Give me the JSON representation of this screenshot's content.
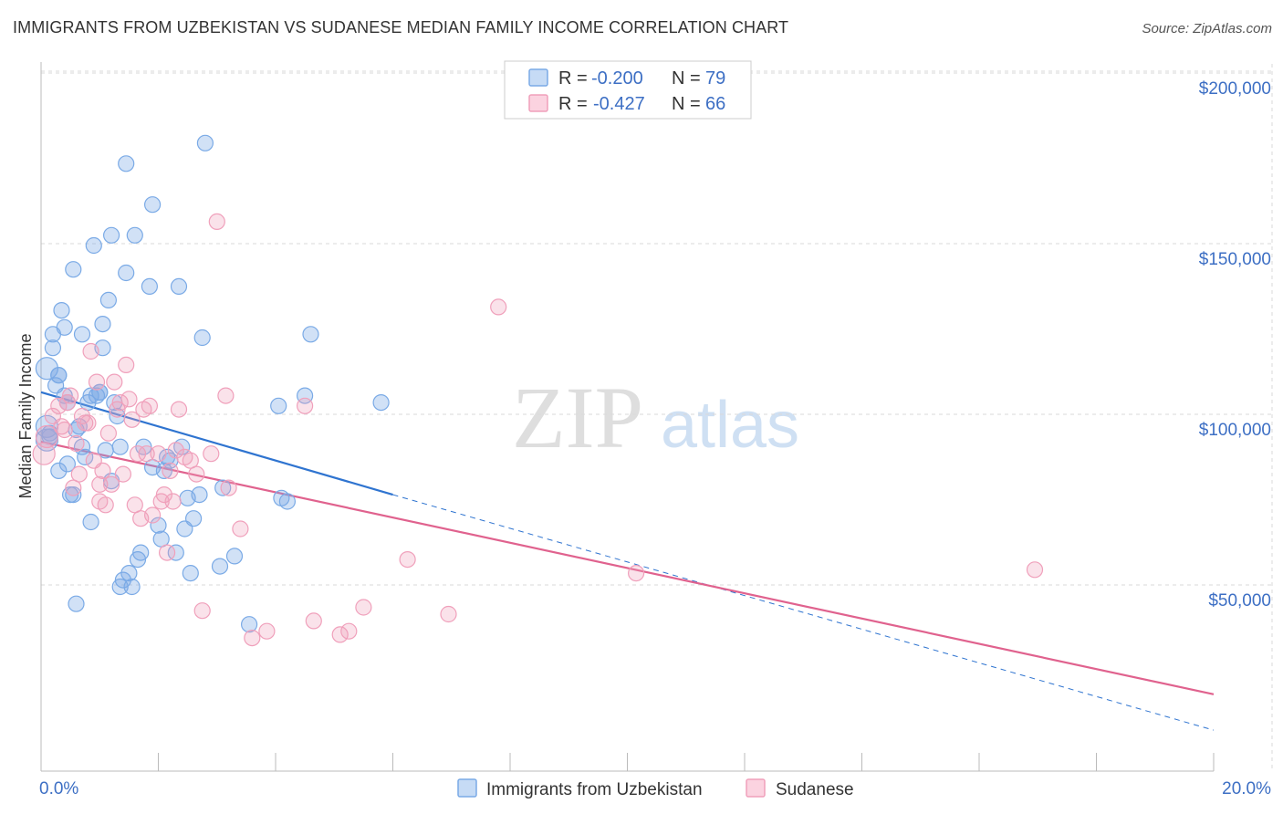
{
  "title": "IMMIGRANTS FROM UZBEKISTAN VS SUDANESE MEDIAN FAMILY INCOME CORRELATION CHART",
  "source": "Source: ZipAtlas.com",
  "watermark": {
    "zip": "ZIP",
    "atlas": "atlas"
  },
  "colors": {
    "blue": "#7aaae6",
    "blue_line": "#2f74d0",
    "pink": "#f0a0bb",
    "pink_line": "#e0628e",
    "grid": "#d9d9d9",
    "tick_text": "#3d6fc4"
  },
  "legend": {
    "r_label": "R =",
    "n_label": "N =",
    "rows": [
      {
        "r": "-0.200",
        "n": "79"
      },
      {
        "r": "-0.427",
        "n": "66"
      }
    ]
  },
  "chart_data": {
    "type": "scatter",
    "xlabel": "",
    "ylabel": "Median Family Income",
    "xlim": [
      0,
      20
    ],
    "ylim": [
      0,
      200000
    ],
    "x_tick_labels": [
      "0.0%",
      "20.0%"
    ],
    "y_ticks": [
      {
        "value": 200000,
        "label": "$200,000"
      },
      {
        "value": 150000,
        "label": "$150,000"
      },
      {
        "value": 100000,
        "label": "$100,000"
      },
      {
        "value": 50000,
        "label": "$50,000"
      }
    ],
    "series": [
      {
        "name": "Immigrants from Uzbekistan",
        "color": "#7aaae6",
        "points": [
          [
            0.1,
            118000
          ],
          [
            0.1,
            101000
          ],
          [
            0.15,
            98000
          ],
          [
            0.2,
            128000
          ],
          [
            0.2,
            124000
          ],
          [
            0.25,
            113000
          ],
          [
            0.3,
            116000
          ],
          [
            0.3,
            116000
          ],
          [
            0.3,
            88000
          ],
          [
            0.35,
            135000
          ],
          [
            0.4,
            130000
          ],
          [
            0.4,
            110000
          ],
          [
            0.45,
            108000
          ],
          [
            0.45,
            90000
          ],
          [
            0.5,
            81000
          ],
          [
            0.55,
            147000
          ],
          [
            0.55,
            81000
          ],
          [
            0.6,
            49000
          ],
          [
            0.65,
            101000
          ],
          [
            0.7,
            128000
          ],
          [
            0.7,
            95000
          ],
          [
            0.75,
            92000
          ],
          [
            0.8,
            108000
          ],
          [
            0.85,
            110000
          ],
          [
            0.85,
            73000
          ],
          [
            0.9,
            154000
          ],
          [
            0.95,
            110000
          ],
          [
            1.0,
            111000
          ],
          [
            1.0,
            111000
          ],
          [
            1.05,
            131000
          ],
          [
            1.05,
            124000
          ],
          [
            1.1,
            94000
          ],
          [
            1.15,
            138000
          ],
          [
            1.2,
            157000
          ],
          [
            1.2,
            85000
          ],
          [
            1.25,
            108000
          ],
          [
            1.3,
            104000
          ],
          [
            1.35,
            95000
          ],
          [
            1.35,
            54000
          ],
          [
            1.4,
            56000
          ],
          [
            1.45,
            178000
          ],
          [
            1.45,
            146000
          ],
          [
            1.5,
            58000
          ],
          [
            1.6,
            157000
          ],
          [
            1.65,
            62000
          ],
          [
            1.7,
            64000
          ],
          [
            1.75,
            95000
          ],
          [
            1.85,
            142000
          ],
          [
            1.9,
            166000
          ],
          [
            1.9,
            89000
          ],
          [
            2.0,
            72000
          ],
          [
            2.05,
            68000
          ],
          [
            2.15,
            92000
          ],
          [
            2.2,
            91000
          ],
          [
            2.3,
            64000
          ],
          [
            2.35,
            142000
          ],
          [
            2.4,
            95000
          ],
          [
            2.45,
            71000
          ],
          [
            2.5,
            80000
          ],
          [
            2.55,
            58000
          ],
          [
            2.6,
            74000
          ],
          [
            2.7,
            81000
          ],
          [
            2.75,
            127000
          ],
          [
            2.8,
            184000
          ],
          [
            3.05,
            60000
          ],
          [
            3.1,
            83000
          ],
          [
            3.3,
            63000
          ],
          [
            3.55,
            43000
          ],
          [
            4.05,
            107000
          ],
          [
            4.1,
            80000
          ],
          [
            4.2,
            79000
          ],
          [
            4.5,
            110000
          ],
          [
            4.6,
            128000
          ],
          [
            5.8,
            108000
          ],
          [
            0.1,
            97000
          ],
          [
            0.6,
            100000
          ],
          [
            1.55,
            54000
          ],
          [
            0.15,
            99000
          ],
          [
            2.1,
            88000
          ]
        ]
      },
      {
        "name": "Sudanese",
        "color": "#f0a0bb",
        "points": [
          [
            0.05,
            93000
          ],
          [
            0.1,
            98000
          ],
          [
            0.2,
            104000
          ],
          [
            0.3,
            107000
          ],
          [
            0.35,
            101000
          ],
          [
            0.4,
            100000
          ],
          [
            0.45,
            108000
          ],
          [
            0.5,
            110000
          ],
          [
            0.55,
            83000
          ],
          [
            0.6,
            96000
          ],
          [
            0.65,
            87000
          ],
          [
            0.7,
            104000
          ],
          [
            0.75,
            102000
          ],
          [
            0.8,
            102000
          ],
          [
            0.85,
            123000
          ],
          [
            0.9,
            91000
          ],
          [
            0.95,
            114000
          ],
          [
            1.0,
            84000
          ],
          [
            1.05,
            88000
          ],
          [
            1.1,
            78000
          ],
          [
            1.15,
            99000
          ],
          [
            1.2,
            84000
          ],
          [
            1.25,
            114000
          ],
          [
            1.3,
            106000
          ],
          [
            1.35,
            108000
          ],
          [
            1.4,
            87000
          ],
          [
            1.45,
            119000
          ],
          [
            1.5,
            109000
          ],
          [
            1.55,
            103000
          ],
          [
            1.6,
            78000
          ],
          [
            1.65,
            93000
          ],
          [
            1.7,
            74000
          ],
          [
            1.75,
            106000
          ],
          [
            1.8,
            93000
          ],
          [
            1.85,
            107000
          ],
          [
            1.9,
            75000
          ],
          [
            2.0,
            93000
          ],
          [
            2.05,
            79000
          ],
          [
            2.1,
            81000
          ],
          [
            2.15,
            64000
          ],
          [
            2.2,
            88000
          ],
          [
            2.25,
            79000
          ],
          [
            2.3,
            94000
          ],
          [
            2.35,
            106000
          ],
          [
            2.45,
            92000
          ],
          [
            2.55,
            91000
          ],
          [
            2.65,
            87000
          ],
          [
            2.75,
            47000
          ],
          [
            2.9,
            93000
          ],
          [
            3.0,
            161000
          ],
          [
            3.15,
            110000
          ],
          [
            3.2,
            83000
          ],
          [
            3.4,
            71000
          ],
          [
            3.6,
            39000
          ],
          [
            3.85,
            41000
          ],
          [
            4.5,
            107000
          ],
          [
            4.65,
            44000
          ],
          [
            5.1,
            40000
          ],
          [
            5.25,
            41000
          ],
          [
            5.5,
            48000
          ],
          [
            6.25,
            62000
          ],
          [
            6.95,
            46000
          ],
          [
            7.8,
            136000
          ],
          [
            10.15,
            58000
          ],
          [
            16.95,
            59000
          ],
          [
            1.0,
            79000
          ]
        ]
      }
    ],
    "trend_lines": [
      {
        "series": "Immigrants from Uzbekistan",
        "x": [
          0,
          6.0
        ],
        "y": [
          111000,
          81000
        ],
        "extended_to": [
          20,
          12000
        ],
        "style": "solid then dashed"
      },
      {
        "series": "Sudanese",
        "x": [
          0,
          20
        ],
        "y": [
          96500,
          22500
        ],
        "style": "solid"
      }
    ],
    "grid": true,
    "legend_position": "top-center"
  }
}
